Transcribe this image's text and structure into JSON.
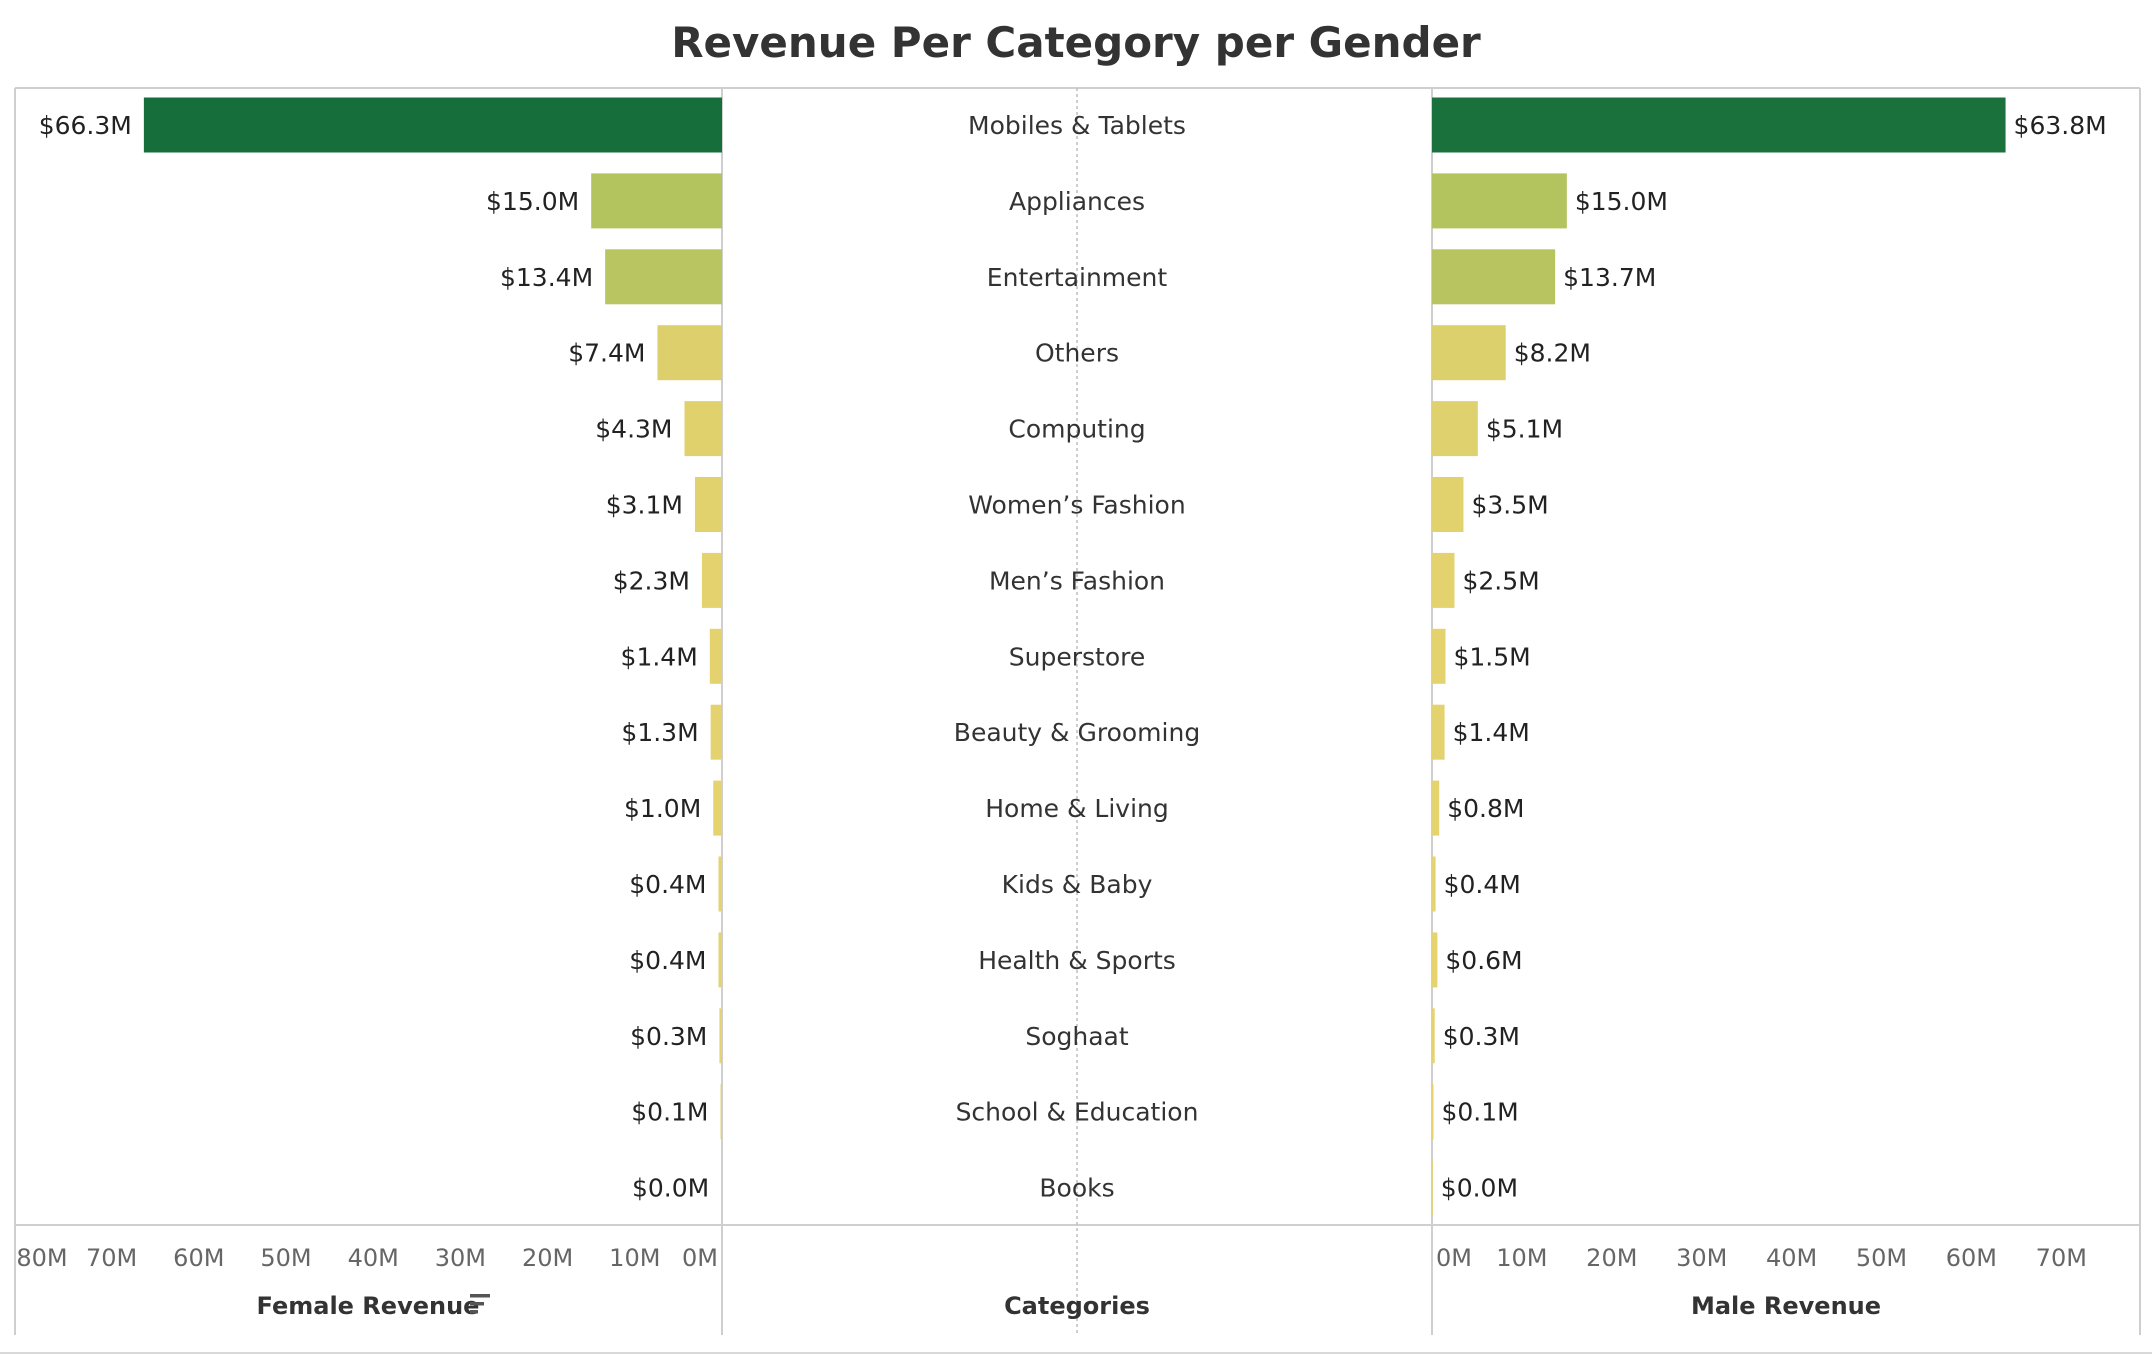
{
  "chart_data": {
    "type": "bar",
    "title": "Revenue Per Category per Gender",
    "categories": [
      "Mobiles & Tablets",
      "Appliances",
      "Entertainment",
      "Others",
      "Computing",
      "Women’s Fashion",
      "Men’s Fashion",
      "Superstore",
      "Beauty & Grooming",
      "Home & Living",
      "Kids & Baby",
      "Health & Sports",
      "Soghaat",
      "School & Education",
      "Books"
    ],
    "series": [
      {
        "name": "Female Revenue",
        "values": [
          66.3,
          15.0,
          13.4,
          7.4,
          4.3,
          3.1,
          2.3,
          1.4,
          1.3,
          1.0,
          0.4,
          0.4,
          0.3,
          0.1,
          0.0
        ],
        "labels": [
          "$66.3M",
          "$15.0M",
          "$13.4M",
          "$7.4M",
          "$4.3M",
          "$3.1M",
          "$2.3M",
          "$1.4M",
          "$1.3M",
          "$1.0M",
          "$0.4M",
          "$0.4M",
          "$0.3M",
          "$0.1M",
          "$0.0M"
        ]
      },
      {
        "name": "Male Revenue",
        "values": [
          63.8,
          15.0,
          13.7,
          8.2,
          5.1,
          3.5,
          2.5,
          1.5,
          1.4,
          0.8,
          0.4,
          0.6,
          0.3,
          0.1,
          0.0
        ],
        "labels": [
          "$63.8M",
          "$15.0M",
          "$13.7M",
          "$8.2M",
          "$5.1M",
          "$3.5M",
          "$2.5M",
          "$1.5M",
          "$1.4M",
          "$0.8M",
          "$0.4M",
          "$0.6M",
          "$0.3M",
          "$0.1M",
          "$0.0M"
        ]
      }
    ],
    "female_axis": {
      "title": "Female Revenue",
      "ticks": [
        80,
        70,
        60,
        50,
        40,
        30,
        20,
        10,
        0
      ],
      "tick_labels": [
        "80M",
        "70M",
        "60M",
        "50M",
        "40M",
        "30M",
        "20M",
        "10M",
        "0M"
      ],
      "range": [
        0,
        80
      ],
      "direction": "reversed"
    },
    "male_axis": {
      "title": "Male Revenue",
      "ticks": [
        0,
        10,
        20,
        30,
        40,
        50,
        60,
        70
      ],
      "tick_labels": [
        "0M",
        "10M",
        "20M",
        "30M",
        "40M",
        "50M",
        "60M",
        "70M"
      ],
      "range": [
        0,
        78
      ]
    },
    "category_axis_title": "Categories",
    "sort_icon": "sort-descending-icon",
    "color_scale": {
      "low": "#e6d36f",
      "mid": "#b3c35e",
      "high": "#166f3b"
    },
    "legend": "none",
    "grid": false
  }
}
